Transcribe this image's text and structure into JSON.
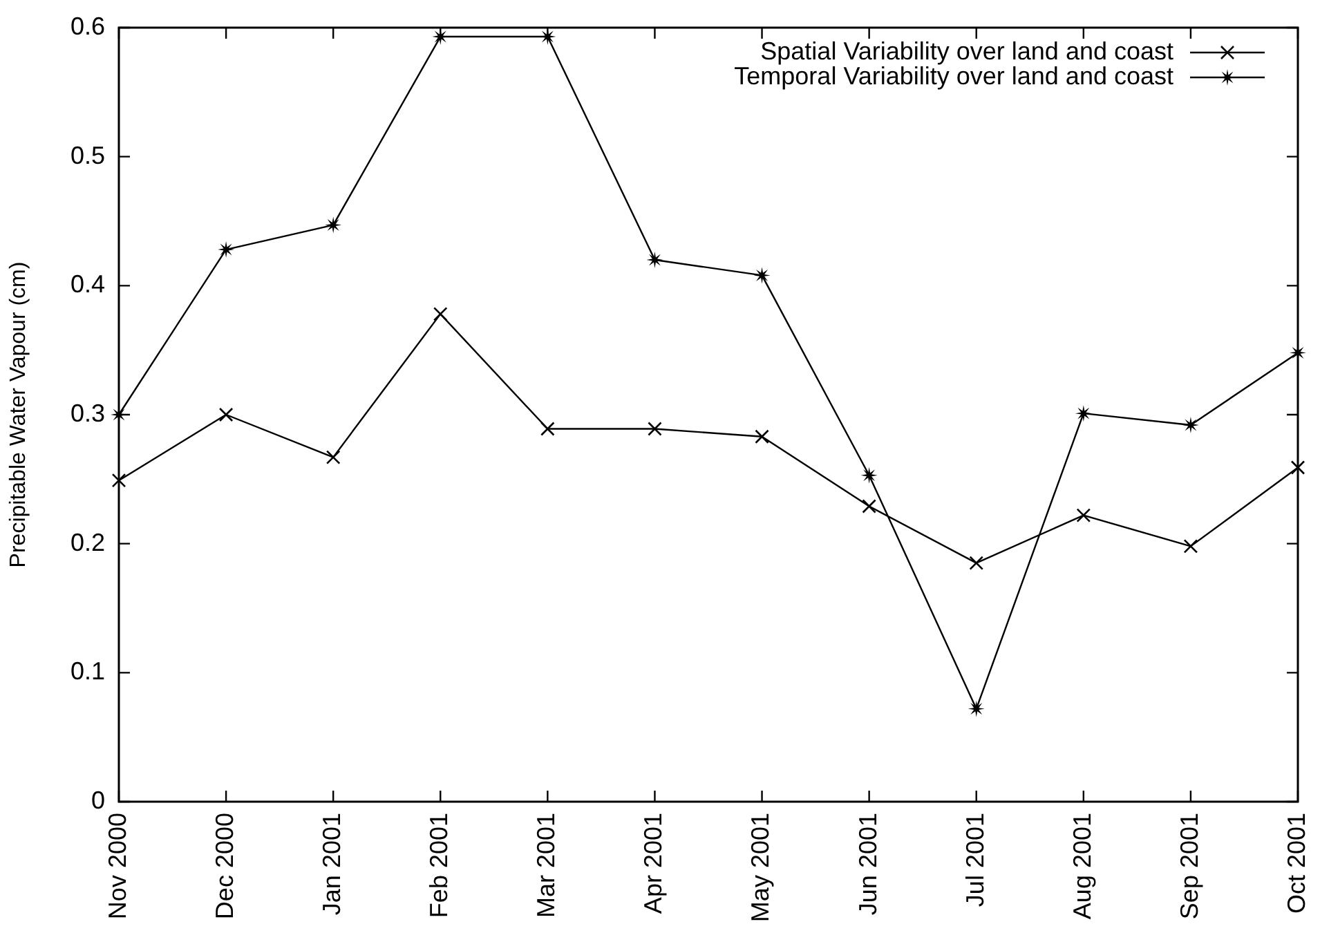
{
  "chart_data": {
    "type": "line",
    "ylabel": "Precipitable Water Vapour (cm)",
    "categories": [
      "Nov 2000",
      "Dec 2000",
      "Jan 2001",
      "Feb 2001",
      "Mar 2001",
      "Apr 2001",
      "May 2001",
      "Jun 2001",
      "Jul 2001",
      "Aug 2001",
      "Sep 2001",
      "Oct 2001"
    ],
    "ylim": [
      0,
      0.6
    ],
    "yticks": [
      0,
      0.1,
      0.2,
      0.3,
      0.4,
      0.5,
      0.6
    ],
    "legend": "top right",
    "line_style": "solid",
    "series": [
      {
        "name": "Spatial Variability over land and coast",
        "color": "#000000",
        "marker": "cross",
        "values": [
          0.249,
          0.3,
          0.267,
          0.378,
          0.289,
          0.289,
          0.283,
          0.229,
          0.185,
          0.222,
          0.198,
          0.259
        ]
      },
      {
        "name": "Temporal Variability over land and coast",
        "color": "#000000",
        "marker": "star",
        "values": [
          0.3,
          0.428,
          0.447,
          0.593,
          0.593,
          0.42,
          0.408,
          0.253,
          0.072,
          0.301,
          0.292,
          0.348
        ]
      }
    ]
  }
}
